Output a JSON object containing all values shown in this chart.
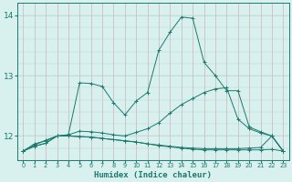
{
  "xlabel": "Humidex (Indice chaleur)",
  "x_values": [
    0,
    1,
    2,
    3,
    4,
    5,
    6,
    7,
    8,
    9,
    10,
    11,
    12,
    13,
    14,
    15,
    16,
    17,
    18,
    19,
    20,
    21,
    22,
    23
  ],
  "lines": [
    [
      11.75,
      11.85,
      11.93,
      12.0,
      12.02,
      12.88,
      12.87,
      12.82,
      12.55,
      12.35,
      12.58,
      12.72,
      13.42,
      13.72,
      13.97,
      13.95,
      13.22,
      13.0,
      12.75,
      12.75,
      12.15,
      12.07,
      12.0,
      11.75
    ],
    [
      11.75,
      11.87,
      11.92,
      12.0,
      12.02,
      12.08,
      12.07,
      12.05,
      12.02,
      12.0,
      12.06,
      12.12,
      12.22,
      12.38,
      12.52,
      12.62,
      12.72,
      12.78,
      12.8,
      12.28,
      12.12,
      12.05,
      12.0,
      11.75
    ],
    [
      11.75,
      11.83,
      11.88,
      12.0,
      12.0,
      11.99,
      11.98,
      11.96,
      11.94,
      11.92,
      11.9,
      11.87,
      11.84,
      11.82,
      11.8,
      11.78,
      11.77,
      11.77,
      11.77,
      11.77,
      11.77,
      11.77,
      11.78,
      11.75
    ],
    [
      11.75,
      11.83,
      11.88,
      12.0,
      12.0,
      11.99,
      11.98,
      11.96,
      11.94,
      11.92,
      11.9,
      11.87,
      11.85,
      11.83,
      11.81,
      11.8,
      11.79,
      11.79,
      11.79,
      11.79,
      11.8,
      11.81,
      12.0,
      11.75
    ]
  ],
  "line_color": "#1a7a6e",
  "bg_color": "#d8f0ee",
  "grid_color_v": "#c8a8a8",
  "grid_color_h": "#b8d0d0",
  "ylim": [
    11.6,
    14.2
  ],
  "yticks": [
    12,
    13,
    14
  ],
  "xlim": [
    -0.5,
    23.5
  ],
  "figsize": [
    3.2,
    2.0
  ],
  "dpi": 100
}
